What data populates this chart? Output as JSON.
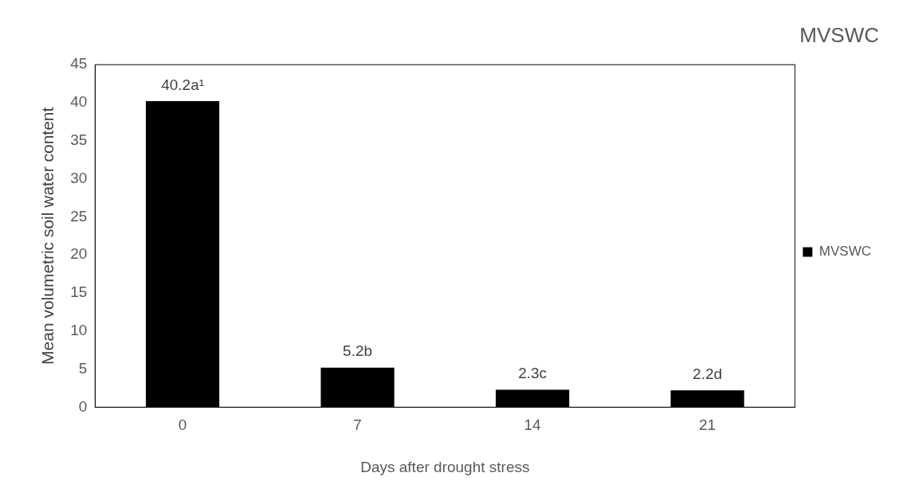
{
  "chart_data": {
    "type": "bar",
    "title": "MVSWC",
    "xlabel": "Days after drought stress",
    "ylabel": "Mean volumetric soil water content",
    "categories": [
      "0",
      "7",
      "14",
      "21"
    ],
    "series": [
      {
        "name": "MVSWC",
        "color": "#000000",
        "values": [
          40.2,
          5.2,
          2.3,
          2.2
        ],
        "value_labels": [
          "40.2a¹",
          "5.2b",
          "2.3c",
          "2.2d"
        ]
      }
    ],
    "ylim": [
      0,
      45
    ],
    "yticks": [
      0,
      5,
      10,
      15,
      20,
      25,
      30,
      35,
      40,
      45
    ],
    "grid": false,
    "legend": "right"
  }
}
